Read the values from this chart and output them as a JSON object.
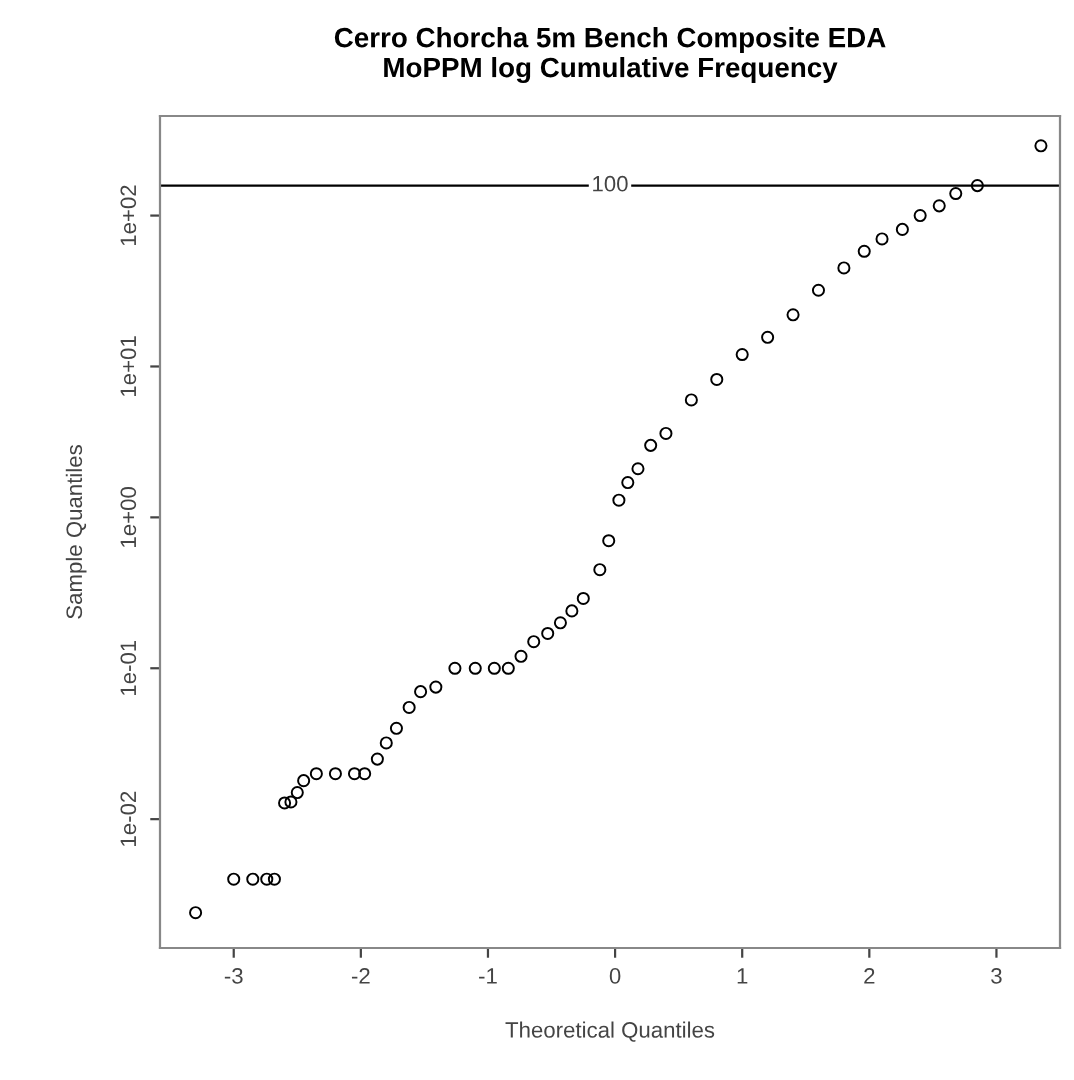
{
  "chart_data": {
    "type": "scatter",
    "title": "Cerro Chorcha 5m Bench Composite EDA\nMoPPM log Cumulative Frequency",
    "xlabel": "Theoretical Quantiles",
    "ylabel": "Sample Quantiles",
    "x": [
      -3.3,
      -3.0,
      -2.85,
      -2.74,
      -2.68,
      -2.6,
      -2.55,
      -2.5,
      -2.45,
      -2.35,
      -2.2,
      -2.05,
      -1.97,
      -1.87,
      -1.8,
      -1.72,
      -1.62,
      -1.53,
      -1.41,
      -1.26,
      -1.1,
      -0.95,
      -0.84,
      -0.74,
      -0.64,
      -0.53,
      -0.43,
      -0.34,
      -0.25,
      -0.12,
      -0.05,
      0.03,
      0.1,
      0.18,
      0.28,
      0.4,
      0.6,
      0.8,
      1.0,
      1.2,
      1.4,
      1.6,
      1.8,
      1.96,
      2.1,
      2.26,
      2.4,
      2.55,
      2.68,
      2.85,
      3.35
    ],
    "values": [
      0.0024,
      0.004,
      0.004,
      0.004,
      0.004,
      0.0128,
      0.013,
      0.015,
      0.018,
      0.02,
      0.02,
      0.02,
      0.02,
      0.025,
      0.032,
      0.04,
      0.055,
      0.07,
      0.075,
      0.1,
      0.1,
      0.1,
      0.1,
      0.12,
      0.15,
      0.17,
      0.2,
      0.24,
      0.29,
      0.45,
      0.7,
      1.3,
      1.7,
      2.1,
      3.0,
      3.6,
      6.0,
      8.2,
      12,
      15.6,
      22,
      32,
      45,
      58,
      70,
      81,
      100,
      116,
      140,
      158,
      290
    ],
    "color": "#000000",
    "marker": "circle",
    "log": "y",
    "xlim": [
      -3.58,
      3.5
    ],
    "xticks": [
      -3,
      -2,
      -1,
      0,
      1,
      2,
      3
    ],
    "ylim": [
      0.0014,
      457
    ],
    "yticks": [
      {
        "value": 0.01,
        "label": "1e-02"
      },
      {
        "value": 0.1,
        "label": "1e-01"
      },
      {
        "value": 1,
        "label": "1e+00"
      },
      {
        "value": 10,
        "label": "1e+01"
      },
      {
        "value": 100,
        "label": "1e+02"
      }
    ],
    "ref_lines": [
      {
        "axis": "y",
        "value": 158,
        "color": "#000000"
      }
    ],
    "annotations": [
      "100"
    ],
    "grid": false
  }
}
